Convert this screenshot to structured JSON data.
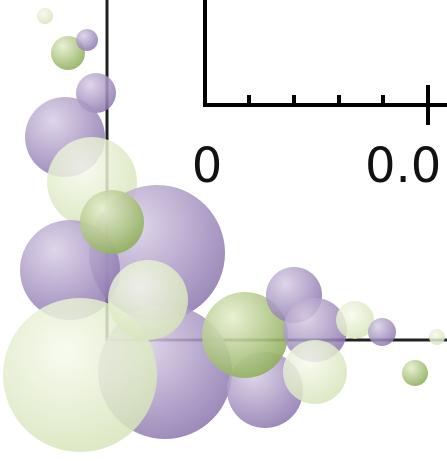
{
  "axis_labels": [
    "0",
    "0.0"
  ]
}
